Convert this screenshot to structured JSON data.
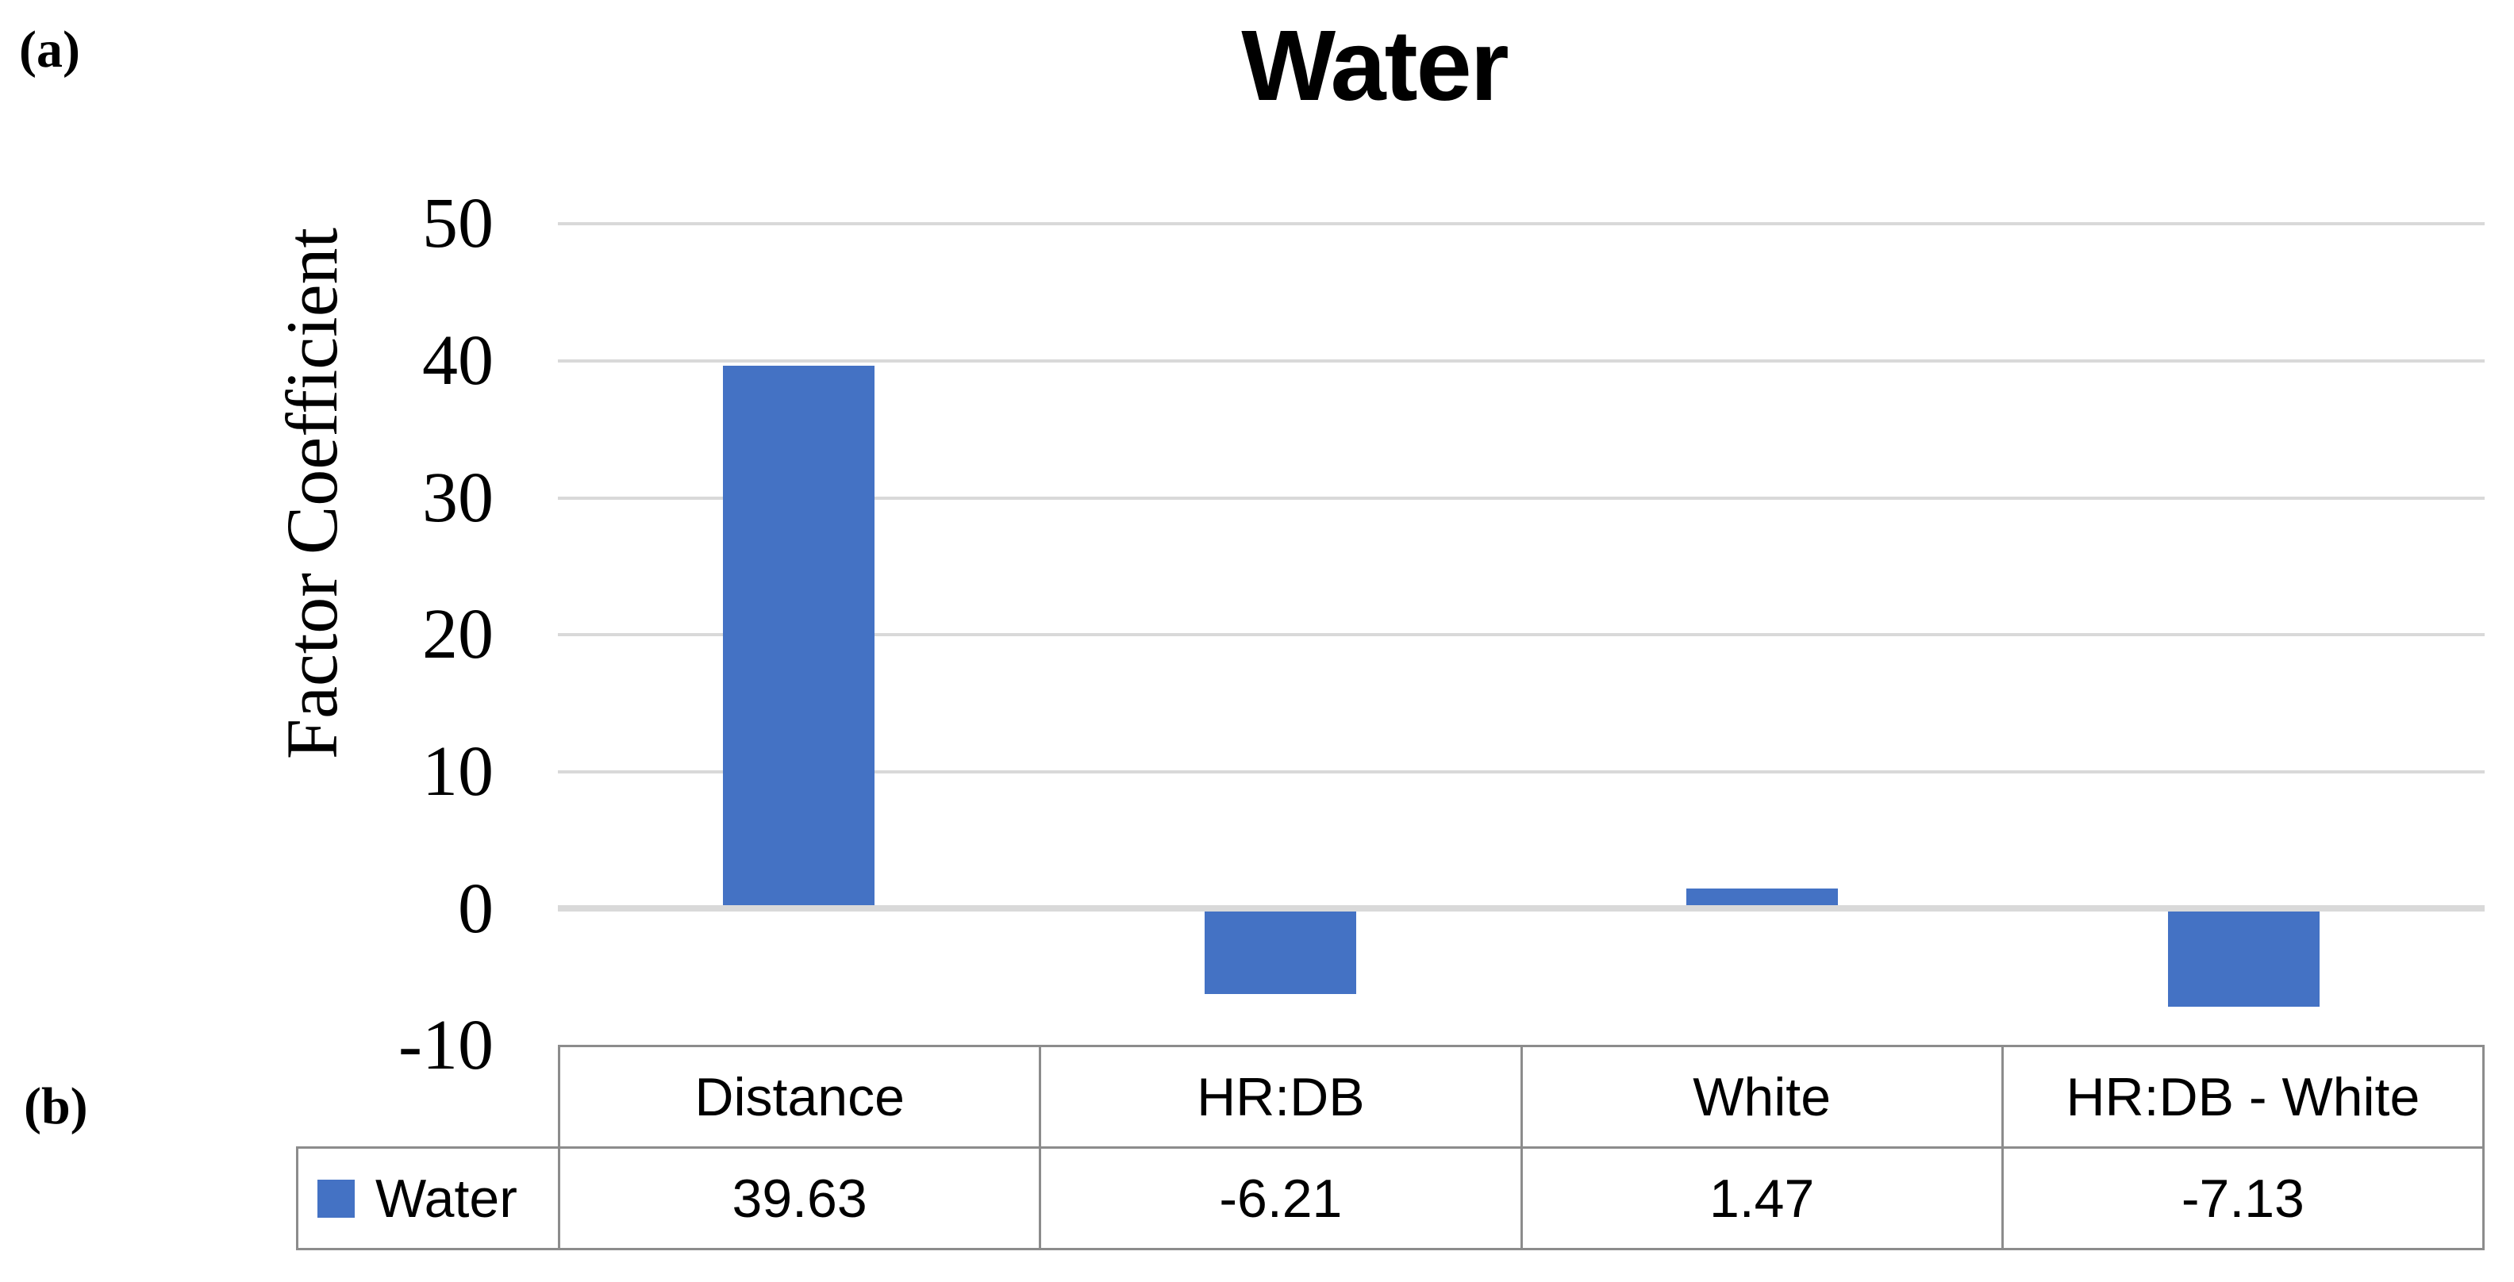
{
  "panel_labels": {
    "a": "(a)",
    "b": "(b)"
  },
  "chart_data": {
    "type": "bar",
    "title": "Water",
    "xlabel": "",
    "ylabel": "Factor Coefficient",
    "categories": [
      "Distance",
      "HR:DB",
      "White",
      "HR:DB - White"
    ],
    "series": [
      {
        "name": "Water",
        "values": [
          39.63,
          -6.21,
          1.47,
          -7.13
        ]
      }
    ],
    "ylim": [
      -10,
      50
    ],
    "yticks": [
      50,
      40,
      30,
      20,
      10,
      0,
      -10
    ],
    "grid": true,
    "legend_position": "data-table-left",
    "bar_color": "#4472C4",
    "gridline_color": "#D9D9D9"
  },
  "table": {
    "legend_label": "Water",
    "legend_color": "#4472C4",
    "headers": [
      "Distance",
      "HR:DB",
      "White",
      "HR:DB - White"
    ],
    "values": [
      "39.63",
      "-6.21",
      "1.47",
      "-7.13"
    ]
  }
}
